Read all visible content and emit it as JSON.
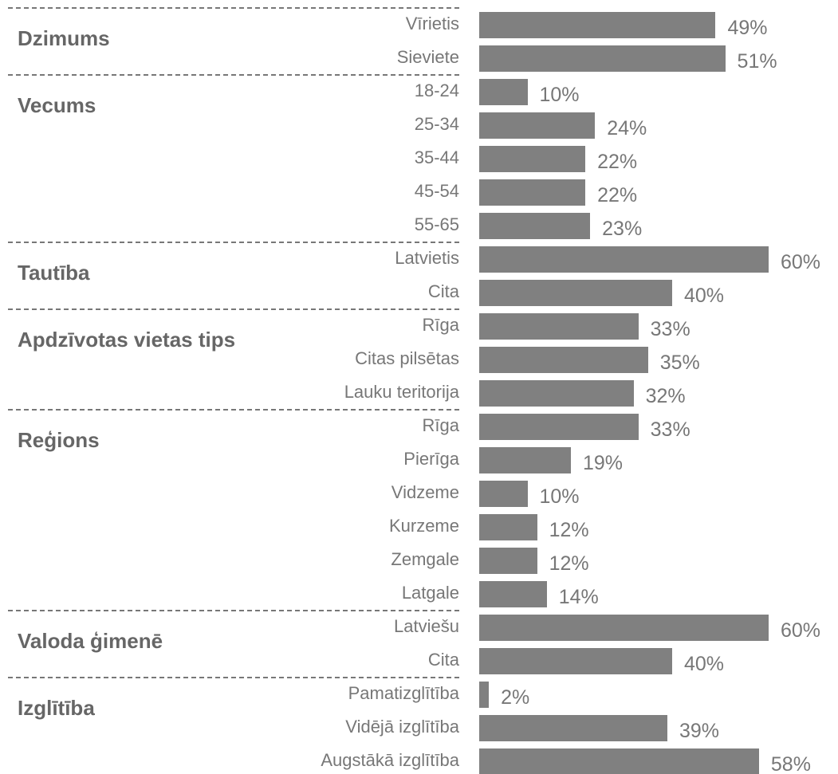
{
  "chart_data": {
    "type": "bar",
    "color": "#808080",
    "groups": [
      {
        "name": "Dzimums",
        "categories": [
          "Vīrietis",
          "Sieviete"
        ],
        "values": [
          49,
          51
        ],
        "value_labels": [
          "49%",
          "51%"
        ]
      },
      {
        "name": "Vecums",
        "categories": [
          "18-24",
          "25-34",
          "35-44",
          "45-54",
          "55-65"
        ],
        "values": [
          10,
          24,
          22,
          22,
          23
        ],
        "value_labels": [
          "10%",
          "24%",
          "22%",
          "22%",
          "23%"
        ]
      },
      {
        "name": "Tautība",
        "categories": [
          "Latvietis",
          "Cita"
        ],
        "values": [
          60,
          40
        ],
        "value_labels": [
          "60%",
          "40%"
        ]
      },
      {
        "name": "Apdzīvotas vietas tips",
        "categories": [
          "Rīga",
          "Citas pilsētas",
          "Lauku teritorija"
        ],
        "values": [
          33,
          35,
          32
        ],
        "value_labels": [
          "33%",
          "35%",
          "32%"
        ]
      },
      {
        "name": "Reģions",
        "categories": [
          "Rīga",
          "Pierīga",
          "Vidzeme",
          "Kurzeme",
          "Zemgale",
          "Latgale"
        ],
        "values": [
          33,
          19,
          10,
          12,
          12,
          14
        ],
        "value_labels": [
          "33%",
          "19%",
          "10%",
          "12%",
          "12%",
          "14%"
        ]
      },
      {
        "name": "Valoda ģimenē",
        "categories": [
          "Latviešu",
          "Cita"
        ],
        "values": [
          60,
          40
        ],
        "value_labels": [
          "60%",
          "40%"
        ]
      },
      {
        "name": "Izglītība",
        "categories": [
          "Pamatizglītība",
          "Vidējā izglītība",
          "Augstākā izglītība"
        ],
        "values": [
          2,
          39,
          58
        ],
        "value_labels": [
          "2%",
          "39%",
          "58%"
        ]
      }
    ]
  }
}
